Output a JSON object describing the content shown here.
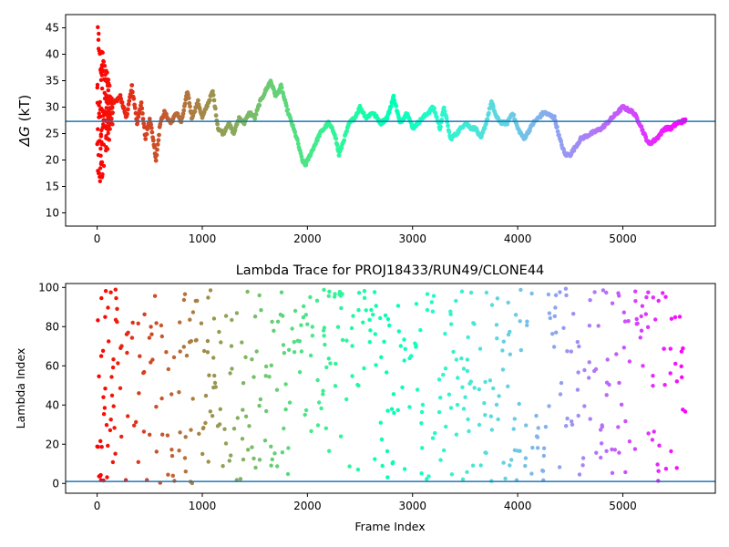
{
  "chart_data": [
    {
      "type": "scatter",
      "title": "",
      "xlabel": "",
      "ylabel": "ΔG (kT)",
      "ylabel_symbol": "ΔG",
      "ylabel_unit": "(kT)",
      "xlim": [
        -300,
        5880
      ],
      "ylim": [
        7.5,
        47.5
      ],
      "xticks": [
        0,
        1000,
        2000,
        3000,
        4000,
        5000
      ],
      "yticks": [
        10,
        15,
        20,
        25,
        30,
        35,
        40,
        45
      ],
      "hline": 27.3,
      "hline_color": "#1f77b4",
      "colormap": "rainbow",
      "frames": 5600,
      "trace_anchors": [
        [
          150,
          30.5
        ],
        [
          220,
          32
        ],
        [
          280,
          28
        ],
        [
          330,
          34
        ],
        [
          380,
          27
        ],
        [
          420,
          31
        ],
        [
          460,
          24
        ],
        [
          500,
          28
        ],
        [
          540,
          23
        ],
        [
          560,
          20
        ],
        [
          600,
          27
        ],
        [
          640,
          29
        ],
        [
          700,
          27
        ],
        [
          760,
          29
        ],
        [
          800,
          27
        ],
        [
          860,
          33
        ],
        [
          900,
          28
        ],
        [
          960,
          31
        ],
        [
          1000,
          28
        ],
        [
          1060,
          31
        ],
        [
          1100,
          33
        ],
        [
          1150,
          26
        ],
        [
          1200,
          25
        ],
        [
          1250,
          27
        ],
        [
          1300,
          25
        ],
        [
          1350,
          28
        ],
        [
          1400,
          27
        ],
        [
          1450,
          29
        ],
        [
          1500,
          28
        ],
        [
          1550,
          31
        ],
        [
          1600,
          33
        ],
        [
          1650,
          35
        ],
        [
          1700,
          32
        ],
        [
          1750,
          34
        ],
        [
          1800,
          30
        ],
        [
          1850,
          27
        ],
        [
          1900,
          24
        ],
        [
          1950,
          20
        ],
        [
          1980,
          19
        ],
        [
          2050,
          22
        ],
        [
          2120,
          25
        ],
        [
          2200,
          27
        ],
        [
          2260,
          25
        ],
        [
          2300,
          21
        ],
        [
          2350,
          24
        ],
        [
          2400,
          27
        ],
        [
          2450,
          28
        ],
        [
          2500,
          30
        ],
        [
          2560,
          28
        ],
        [
          2620,
          29
        ],
        [
          2700,
          27
        ],
        [
          2760,
          28
        ],
        [
          2820,
          32
        ],
        [
          2880,
          27
        ],
        [
          2950,
          29
        ],
        [
          3000,
          26
        ],
        [
          3100,
          28
        ],
        [
          3200,
          30
        ],
        [
          3260,
          26
        ],
        [
          3300,
          30
        ],
        [
          3360,
          24
        ],
        [
          3420,
          25
        ],
        [
          3500,
          27
        ],
        [
          3560,
          26
        ],
        [
          3600,
          26
        ],
        [
          3650,
          24
        ],
        [
          3700,
          27
        ],
        [
          3750,
          31
        ],
        [
          3800,
          28
        ],
        [
          3850,
          27
        ],
        [
          3900,
          27
        ],
        [
          3950,
          29
        ],
        [
          4000,
          26
        ],
        [
          4060,
          24
        ],
        [
          4150,
          27
        ],
        [
          4250,
          29
        ],
        [
          4350,
          28
        ],
        [
          4400,
          24
        ],
        [
          4450,
          21
        ],
        [
          4500,
          21
        ],
        [
          4600,
          24
        ],
        [
          4700,
          25
        ],
        [
          4800,
          26
        ],
        [
          4900,
          28
        ],
        [
          5000,
          30
        ],
        [
          5100,
          29
        ],
        [
          5160,
          27
        ],
        [
          5200,
          25
        ],
        [
          5250,
          23
        ],
        [
          5320,
          24
        ],
        [
          5400,
          26
        ],
        [
          5460,
          26
        ],
        [
          5520,
          27
        ],
        [
          5600,
          27.5
        ]
      ],
      "early_scatter_ymin": 10,
      "early_scatter_ymax": 46
    },
    {
      "type": "scatter",
      "title": "Lambda Trace for PROJ18433/RUN49/CLONE44",
      "xlabel": "Frame Index",
      "ylabel": "Lambda Index",
      "xlim": [
        -300,
        5880
      ],
      "ylim": [
        -5,
        102
      ],
      "xticks": [
        0,
        1000,
        2000,
        3000,
        4000,
        5000
      ],
      "yticks": [
        0,
        20,
        40,
        60,
        80,
        100
      ],
      "hline": 1,
      "hline_color": "#1f77b4",
      "colormap": "rainbow",
      "frames": 5600,
      "column_spacing": 55,
      "top_clusters": [
        [
          1850,
          2000
        ],
        [
          4320,
          4450
        ],
        [
          5100,
          5240
        ]
      ],
      "bottom_clusters": [
        [
          4130,
          4270
        ],
        [
          1950,
          2070
        ]
      ]
    }
  ]
}
